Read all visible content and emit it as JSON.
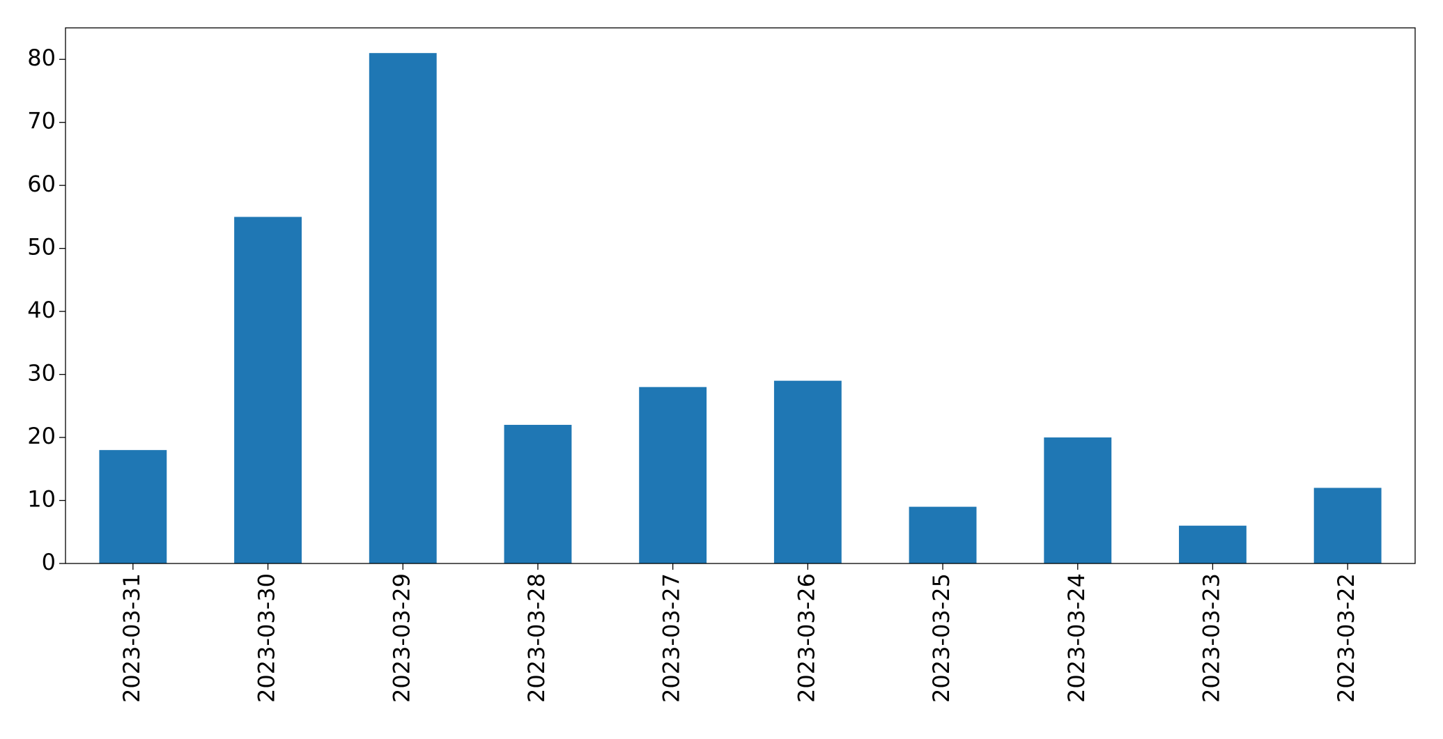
{
  "chart_data": {
    "type": "bar",
    "categories": [
      "2023-03-31",
      "2023-03-30",
      "2023-03-29",
      "2023-03-28",
      "2023-03-27",
      "2023-03-26",
      "2023-03-25",
      "2023-03-24",
      "2023-03-23",
      "2023-03-22"
    ],
    "values": [
      18,
      55,
      81,
      22,
      28,
      29,
      9,
      20,
      6,
      12
    ],
    "color": "#1f77b4",
    "ylim": [
      0,
      85
    ],
    "yticks": [
      0,
      10,
      20,
      30,
      40,
      50,
      60,
      70,
      80
    ],
    "grid": false
  }
}
